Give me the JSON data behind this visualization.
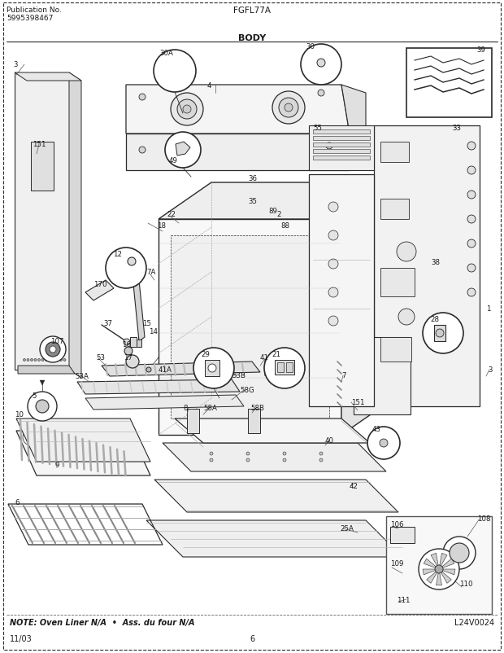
{
  "title_center": "FGFL77A",
  "title_section": "BODY",
  "pub_no_label": "Publication No.",
  "pub_no": "5995398467",
  "bottom_left": "11/03",
  "bottom_center": "6",
  "bottom_right": "L24V0024",
  "note_text": "NOTE: Oven Liner N/A  •  Ass. du four N/A",
  "bg_color": "#ffffff",
  "line_color": "#2a2a2a",
  "text_color": "#1a1a1a",
  "fig_width": 6.2,
  "fig_height": 8.03,
  "dpi": 100
}
